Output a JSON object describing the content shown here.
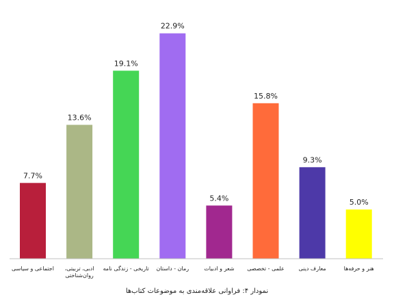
{
  "chart_data": {
    "type": "bar",
    "title": "نمودار ۴: فراوانی علاقه‌مندی به موضوعات کتاب‌ها",
    "categories": [
      "اجتماعی و سیاسی",
      "ادبی، تربیتی، روان‌شناختی",
      "تاریخی - زندگی نامه",
      "رمان - داستان",
      "شعر و ادبیات",
      "علمی - تخصصی",
      "معارف دینی",
      "هنر و حرفه‌ها"
    ],
    "values": [
      7.7,
      13.6,
      19.1,
      22.9,
      5.4,
      15.8,
      9.3,
      5.0
    ],
    "value_labels": [
      "7.7%",
      "13.6%",
      "19.1%",
      "22.9%",
      "5.4%",
      "15.8%",
      "9.3%",
      "5.0%"
    ],
    "colors": [
      "#b81f3b",
      "#abb786",
      "#45d655",
      "#a06cf1",
      "#a1288f",
      "#ff6b3a",
      "#4d39a8",
      "#ffff00"
    ],
    "ylim": [
      0,
      25
    ],
    "grid": false,
    "legend": "none",
    "xlabel": "",
    "ylabel": ""
  }
}
